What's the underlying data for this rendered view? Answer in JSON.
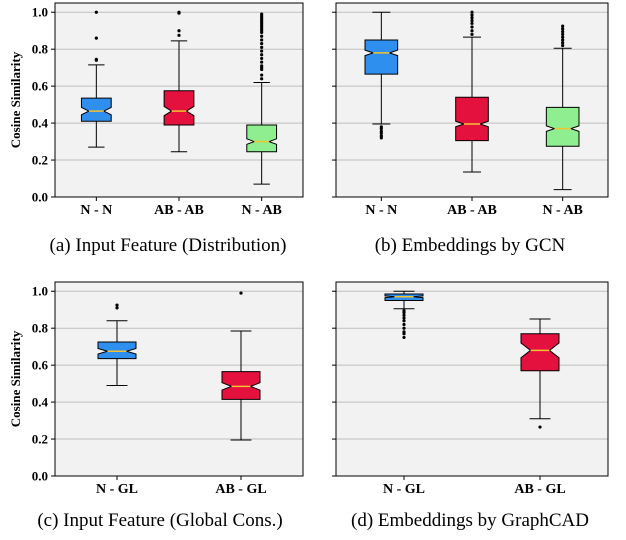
{
  "colors": {
    "blue": "#2f8fee",
    "red": "#e4103e",
    "green": "#8fee8f",
    "median": "#f2c232",
    "plot_bg": "#f2f2f2",
    "grid": "#bfbfbf",
    "outlier": "#000000"
  },
  "chart_data": [
    {
      "type": "box",
      "caption": "(a) Input Feature (Distribution)",
      "ylabel": "Cosine Similarity",
      "ylim": [
        0.0,
        1.05
      ],
      "yticks": [
        "0.0",
        "0.2",
        "0.4",
        "0.6",
        "0.8",
        "1.0"
      ],
      "show_ytick_labels": true,
      "notched": true,
      "categories": [
        "N - N",
        "AB - AB",
        "N - AB"
      ],
      "boxes": [
        {
          "color": "blue",
          "whisker_low": 0.27,
          "q1": 0.41,
          "median": 0.465,
          "q3": 0.535,
          "whisker_high": 0.715,
          "notch_low": 0.445,
          "notch_high": 0.485,
          "outliers": [
            0.74,
            0.745,
            0.86,
            1.0
          ]
        },
        {
          "color": "red",
          "whisker_low": 0.245,
          "q1": 0.39,
          "median": 0.465,
          "q3": 0.575,
          "whisker_high": 0.845,
          "notch_low": 0.44,
          "notch_high": 0.49,
          "outliers": [
            0.875,
            0.9,
            0.995,
            1.0
          ]
        },
        {
          "color": "green",
          "whisker_low": 0.07,
          "q1": 0.245,
          "median": 0.3,
          "q3": 0.39,
          "whisker_high": 0.62,
          "notch_low": 0.285,
          "notch_high": 0.315,
          "outliers": [
            0.64,
            0.66,
            0.69,
            0.7,
            0.71,
            0.73,
            0.75,
            0.77,
            0.79,
            0.81,
            0.83,
            0.85,
            0.87,
            0.89,
            0.9,
            0.91,
            0.92,
            0.93,
            0.94,
            0.95,
            0.96,
            0.97,
            0.98,
            0.99
          ]
        }
      ]
    },
    {
      "type": "box",
      "caption": "(b) Embeddings by GCN",
      "ylabel": "",
      "ylim": [
        0.0,
        1.05
      ],
      "yticks": [
        "0.0",
        "0.2",
        "0.4",
        "0.6",
        "0.8",
        "1.0"
      ],
      "show_ytick_labels": false,
      "notched": true,
      "categories": [
        "N - N",
        "AB - AB",
        "N - AB"
      ],
      "boxes": [
        {
          "color": "blue",
          "whisker_low": 0.395,
          "q1": 0.665,
          "median": 0.78,
          "q3": 0.85,
          "whisker_high": 1.0,
          "notch_low": 0.765,
          "notch_high": 0.795,
          "outliers": [
            0.32,
            0.33,
            0.345,
            0.355,
            0.37,
            0.38
          ]
        },
        {
          "color": "red",
          "whisker_low": 0.135,
          "q1": 0.305,
          "median": 0.395,
          "q3": 0.54,
          "whisker_high": 0.865,
          "notch_low": 0.38,
          "notch_high": 0.41,
          "outliers": [
            0.88,
            0.9,
            0.92,
            0.94,
            0.955,
            0.97,
            0.985,
            1.0
          ]
        },
        {
          "color": "green",
          "whisker_low": 0.04,
          "q1": 0.275,
          "median": 0.37,
          "q3": 0.485,
          "whisker_high": 0.805,
          "notch_low": 0.355,
          "notch_high": 0.385,
          "outliers": [
            0.82,
            0.835,
            0.85,
            0.865,
            0.88,
            0.895,
            0.91,
            0.925
          ]
        }
      ]
    },
    {
      "type": "box",
      "caption": "(c) Input Feature (Global Cons.)",
      "ylabel": "Cosine Similarity",
      "ylim": [
        0.0,
        1.05
      ],
      "yticks": [
        "0.0",
        "0.2",
        "0.4",
        "0.6",
        "0.8",
        "1.0"
      ],
      "show_ytick_labels": true,
      "notched": true,
      "categories": [
        "N - GL",
        "AB - GL"
      ],
      "boxes": [
        {
          "color": "blue",
          "whisker_low": 0.49,
          "q1": 0.635,
          "median": 0.675,
          "q3": 0.725,
          "whisker_high": 0.84,
          "notch_low": 0.66,
          "notch_high": 0.69,
          "outliers": [
            0.91,
            0.925
          ]
        },
        {
          "color": "red",
          "whisker_low": 0.195,
          "q1": 0.415,
          "median": 0.485,
          "q3": 0.565,
          "whisker_high": 0.785,
          "notch_low": 0.465,
          "notch_high": 0.505,
          "outliers": [
            0.99
          ]
        }
      ]
    },
    {
      "type": "box",
      "caption": "(d) Embeddings by GraphCAD",
      "ylabel": "",
      "ylim": [
        0.0,
        1.05
      ],
      "yticks": [
        "0.0",
        "0.2",
        "0.4",
        "0.6",
        "0.8",
        "1.0"
      ],
      "show_ytick_labels": false,
      "notched": true,
      "categories": [
        "N - GL",
        "AB - GL"
      ],
      "boxes": [
        {
          "color": "blue",
          "whisker_low": 0.905,
          "q1": 0.95,
          "median": 0.97,
          "q3": 0.985,
          "whisker_high": 1.0,
          "notch_low": 0.965,
          "notch_high": 0.975,
          "outliers": [
            0.75,
            0.77,
            0.78,
            0.8,
            0.82,
            0.84,
            0.855,
            0.87,
            0.885,
            0.895
          ]
        },
        {
          "color": "red",
          "whisker_low": 0.31,
          "q1": 0.57,
          "median": 0.68,
          "q3": 0.77,
          "whisker_high": 0.85,
          "notch_low": 0.64,
          "notch_high": 0.72,
          "outliers": [
            0.265
          ]
        }
      ]
    }
  ]
}
